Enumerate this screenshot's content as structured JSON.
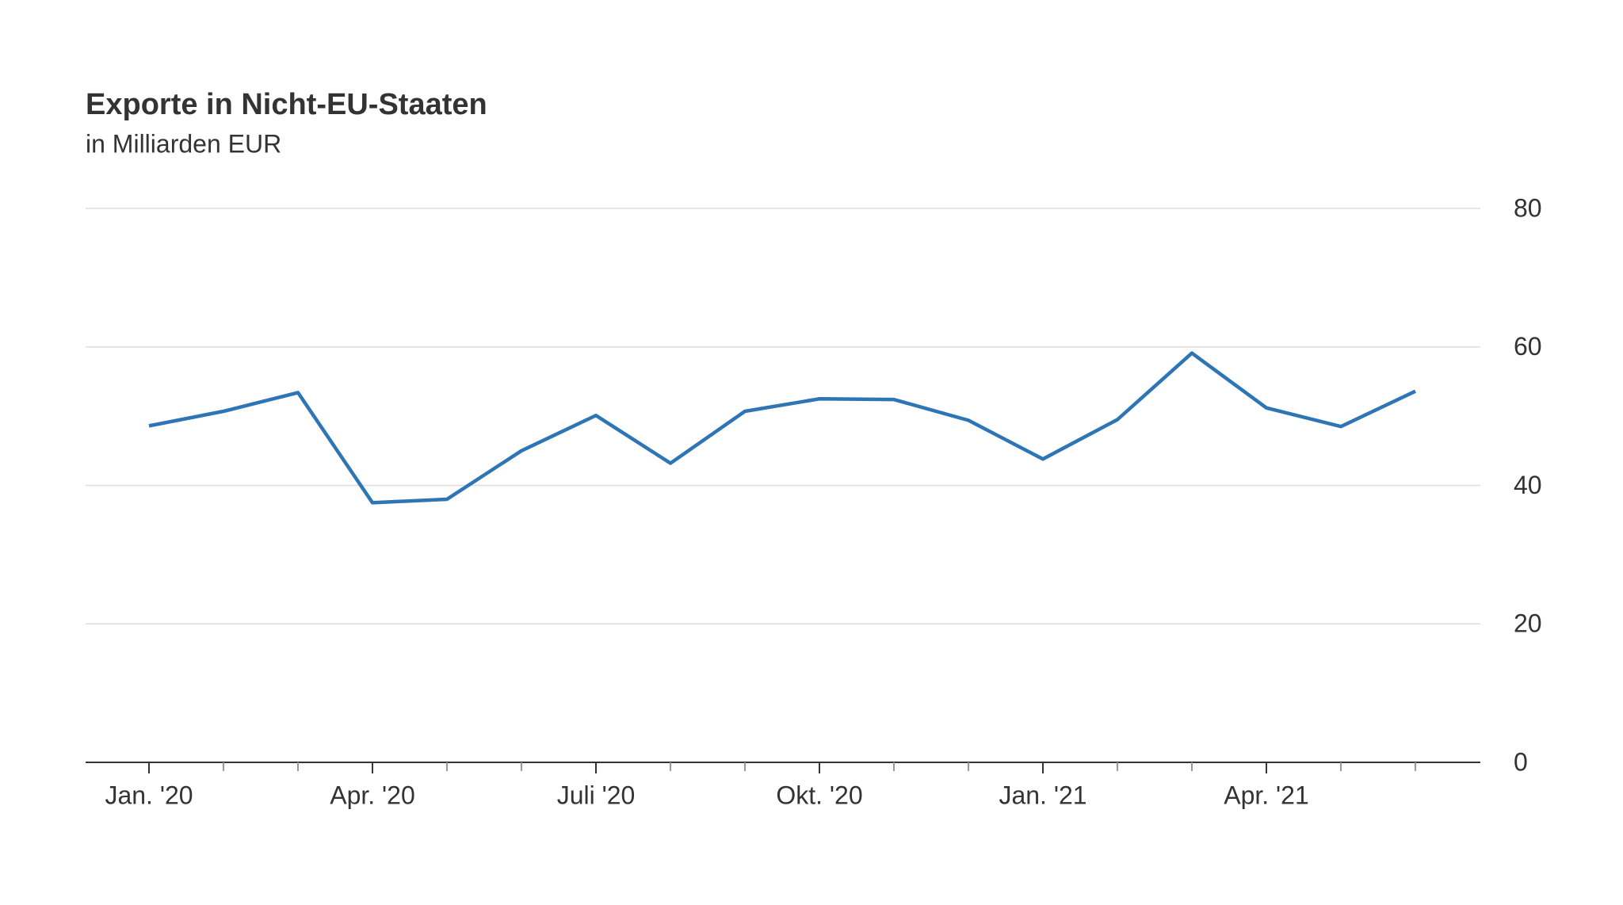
{
  "chart_data": {
    "type": "line",
    "title": "Exporte in Nicht-EU-Staaten",
    "subtitle": "in Milliarden EUR",
    "categories": [
      "Jan. '20",
      null,
      null,
      "Apr. '20",
      null,
      null,
      "Juli '20",
      null,
      null,
      "Okt. '20",
      null,
      null,
      "Jan. '21",
      null,
      null,
      "Apr. '21",
      null,
      null
    ],
    "series": [
      {
        "name": "Exporte",
        "color": "#2e75b6",
        "values": [
          48.6,
          50.7,
          53.4,
          37.5,
          38.0,
          45.0,
          50.1,
          43.2,
          50.7,
          52.5,
          52.4,
          49.4,
          43.8,
          49.5,
          59.1,
          51.2,
          48.5,
          53.6
        ]
      }
    ],
    "ylim": [
      0,
      80
    ],
    "yticks": [
      0,
      20,
      40,
      60,
      80
    ],
    "grid": true
  }
}
